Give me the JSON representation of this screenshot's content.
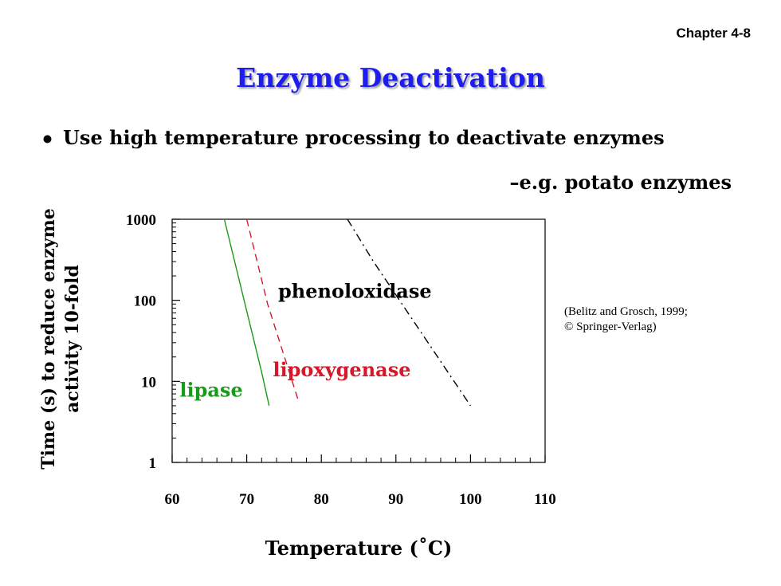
{
  "header": {
    "chapter": "Chapter 4-8"
  },
  "slide": {
    "title": "Enzyme Deactivation",
    "bullet": "Use high temperature processing to deactivate enzymes",
    "sub_bullet": "–e.g. potato enzymes",
    "citation_line1": "(Belitz and Grosch, 1999;",
    "citation_line2": "© Springer-Verlag)"
  },
  "chart_data": {
    "type": "line",
    "title": "",
    "xlabel": "Temperature (˚C)",
    "ylabel_line1": "Time (s) to reduce enzyme",
    "ylabel_line2": "activity 10-fold",
    "xlim": [
      60,
      110
    ],
    "ylim": [
      1,
      1000
    ],
    "yscale": "log",
    "xticks": [
      "60",
      "70",
      "80",
      "90",
      "100",
      "110"
    ],
    "yticks": [
      "1",
      "10",
      "100",
      "1000"
    ],
    "xtick_values": [
      60,
      70,
      80,
      90,
      100,
      110
    ],
    "ytick_values": [
      1,
      10,
      100,
      1000
    ],
    "grid": false,
    "series": [
      {
        "name": "lipase",
        "color": "#1a9a1a",
        "dash": "solid",
        "points": [
          [
            67.0,
            1000
          ],
          [
            72.0,
            13.0
          ],
          [
            73.0,
            5.0
          ]
        ]
      },
      {
        "name": "lipoxygenase",
        "color": "#d6182a",
        "dash": "dashed",
        "points": [
          [
            70.0,
            1000
          ],
          [
            72.8,
            90.0
          ],
          [
            77.0,
            5.5
          ]
        ]
      },
      {
        "name": "phenoloxidase",
        "color": "#000000",
        "dash": "dashdot",
        "points": [
          [
            83.5,
            1000
          ],
          [
            87.0,
            300.0
          ],
          [
            100.0,
            5.0
          ]
        ]
      }
    ]
  }
}
